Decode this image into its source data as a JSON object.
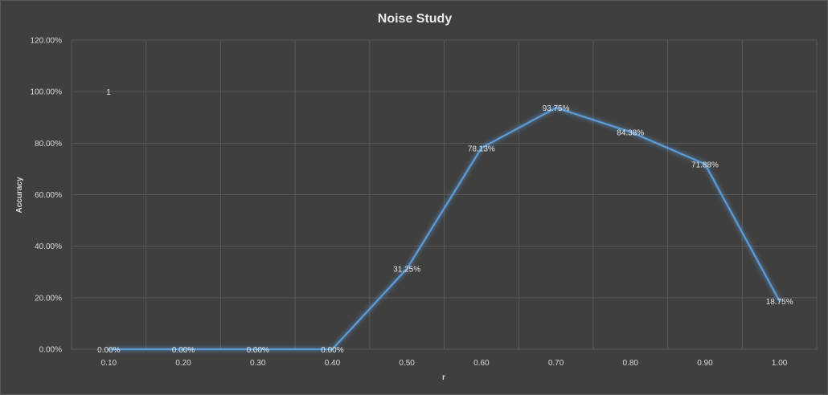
{
  "chart_data": {
    "type": "line",
    "title": "Noise Study",
    "xlabel": "r",
    "ylabel": "Accuracy",
    "categories": [
      "0.10",
      "0.20",
      "0.30",
      "0.40",
      "0.50",
      "0.60",
      "0.70",
      "0.80",
      "0.90",
      "1.00"
    ],
    "series": [
      {
        "values": [
          0.0,
          0.0,
          0.0,
          0.0,
          31.25,
          78.13,
          93.75,
          84.38,
          71.88,
          18.75
        ],
        "labels": [
          "0.00%",
          "0.00%",
          "0.00%",
          "0.00%",
          "31.25%",
          "78.13%",
          "93.75%",
          "84.38%",
          "71.88%",
          "18.75%"
        ],
        "color": "#5b9bd5"
      }
    ],
    "ylim": [
      0,
      120
    ],
    "yticks": [
      "0.00%",
      "20.00%",
      "40.00%",
      "60.00%",
      "80.00%",
      "100.00%",
      "120.00%"
    ],
    "ytick_values": [
      0,
      20,
      40,
      60,
      80,
      100,
      120
    ],
    "annotation": "1",
    "grid": true,
    "legend": "none"
  },
  "colors": {
    "background": "#3f3f3f",
    "gridline": "#595959",
    "line": "#5b9bd5",
    "text": "#d9d9d9"
  }
}
